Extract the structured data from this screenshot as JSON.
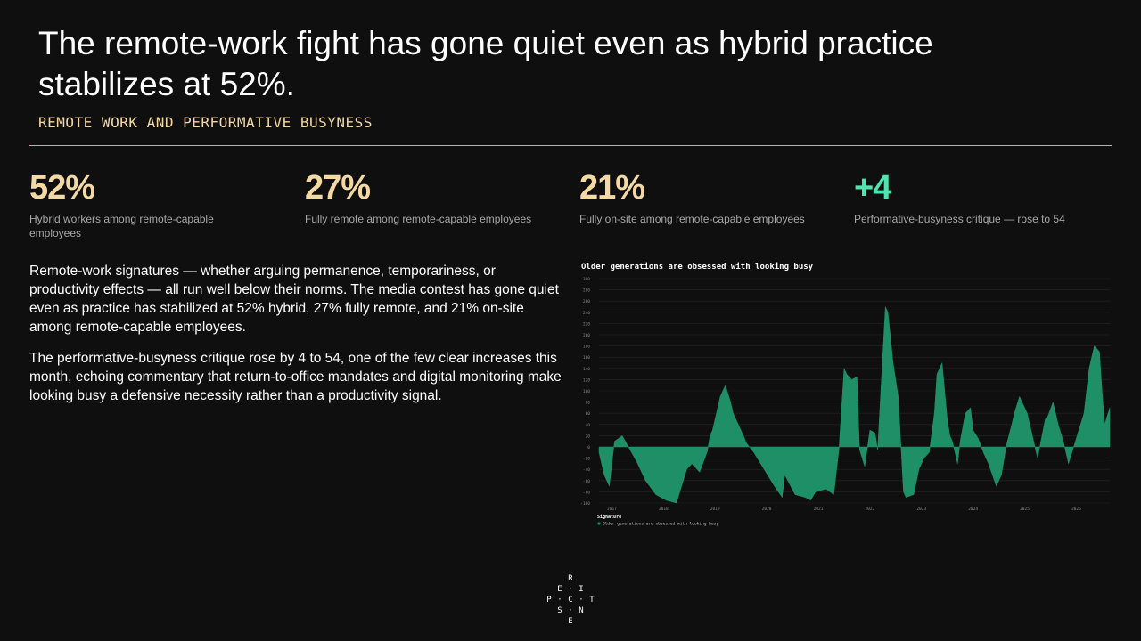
{
  "title": "The remote-work fight has gone quiet even as hybrid practice stabilizes at 52%.",
  "subtitle": "REMOTE WORK AND PERFORMATIVE BUSYNESS",
  "kpis": [
    {
      "value": "52%",
      "label": "Hybrid workers among remote-capable employees",
      "color": "#f4d9a4"
    },
    {
      "value": "27%",
      "label": "Fully remote among remote-capable employees",
      "color": "#f4d9a4"
    },
    {
      "value": "21%",
      "label": "Fully on-site among remote-capable employees",
      "color": "#f4d9a4"
    },
    {
      "value": "+4",
      "label": "Performative-busyness critique — rose to 54",
      "color": "#4fe3b0"
    }
  ],
  "paragraphs": [
    "Remote-work signatures — whether arguing permanence, temporariness, or productivity effects — all run well below their norms. The media contest has gone quiet even as practice has stabilized at 52% hybrid, 27% fully remote, and 21% on-site among remote-capable employees.",
    "The performative-busyness critique rose by 4 to 54, one of the few clear increases this month, echoing commentary that return-to-office mandates and digital monitoring make looking busy a defensive necessity rather than a productivity signal."
  ],
  "logo": {
    "letters": [
      "R",
      "E",
      "I",
      "P",
      "C",
      "T",
      "S",
      "N",
      "E"
    ]
  },
  "chart_data": {
    "type": "area",
    "title": "Older generations are obsessed with looking busy",
    "legend_title": "Signature",
    "legend_position": "bottom-left",
    "series_color": "#1f8f68",
    "grid": true,
    "ylim": [
      -100,
      300
    ],
    "yticks": [
      -100,
      -80,
      -60,
      -40,
      -20,
      0,
      20,
      40,
      60,
      80,
      100,
      120,
      140,
      160,
      180,
      200,
      220,
      240,
      260,
      280,
      300
    ],
    "xlim": [
      2016.8,
      2026.7
    ],
    "xticks": [
      "2017",
      "2018",
      "2019",
      "2020",
      "2021",
      "2022",
      "2023",
      "2024",
      "2025",
      "2026"
    ],
    "series": [
      {
        "name": "Older generations are obsessed with looking busy",
        "x": [
          2016.8,
          2016.9,
          2017.0,
          2017.1,
          2017.25,
          2017.4,
          2017.55,
          2017.7,
          2017.9,
          2018.1,
          2018.3,
          2018.5,
          2018.6,
          2018.75,
          2018.9,
          2018.95,
          2019.0,
          2019.05,
          2019.15,
          2019.25,
          2019.3,
          2019.35,
          2019.4,
          2019.5,
          2019.6,
          2019.65,
          2019.8,
          2020.0,
          2020.2,
          2020.35,
          2020.4,
          2020.6,
          2020.8,
          2020.9,
          2021.0,
          2021.2,
          2021.35,
          2021.45,
          2021.55,
          2021.6,
          2021.7,
          2021.8,
          2021.85,
          2021.95,
          2022.05,
          2022.15,
          2022.2,
          2022.35,
          2022.4,
          2022.5,
          2022.6,
          2022.7,
          2022.75,
          2022.9,
          2023.0,
          2023.1,
          2023.2,
          2023.3,
          2023.35,
          2023.45,
          2023.55,
          2023.6,
          2023.65,
          2023.75,
          2023.8,
          2023.9,
          2024.0,
          2024.05,
          2024.15,
          2024.25,
          2024.35,
          2024.5,
          2024.6,
          2024.7,
          2024.8,
          2024.85,
          2024.95,
          2025.0,
          2025.1,
          2025.2,
          2025.3,
          2025.45,
          2025.5,
          2025.6,
          2025.7,
          2025.8,
          2025.9,
          2026.0,
          2026.1,
          2026.2,
          2026.3,
          2026.4,
          2026.5,
          2026.55,
          2026.6,
          2026.7
        ],
        "y": [
          -10,
          -50,
          -70,
          10,
          20,
          -5,
          -30,
          -60,
          -85,
          -95,
          -100,
          -40,
          -30,
          -45,
          -8,
          20,
          30,
          50,
          90,
          110,
          95,
          80,
          60,
          40,
          20,
          8,
          -10,
          -40,
          -70,
          -90,
          -50,
          -85,
          -90,
          -95,
          -80,
          -75,
          -85,
          -5,
          140,
          130,
          120,
          125,
          -5,
          -35,
          30,
          25,
          -5,
          250,
          240,
          150,
          90,
          -80,
          -90,
          -85,
          -40,
          -20,
          -10,
          60,
          130,
          150,
          50,
          20,
          10,
          -30,
          10,
          60,
          70,
          30,
          15,
          -10,
          -30,
          -70,
          -50,
          5,
          40,
          60,
          90,
          80,
          60,
          20,
          -20,
          50,
          55,
          80,
          40,
          10,
          -30,
          0,
          30,
          60,
          140,
          180,
          170,
          100,
          40,
          70
        ]
      }
    ]
  }
}
